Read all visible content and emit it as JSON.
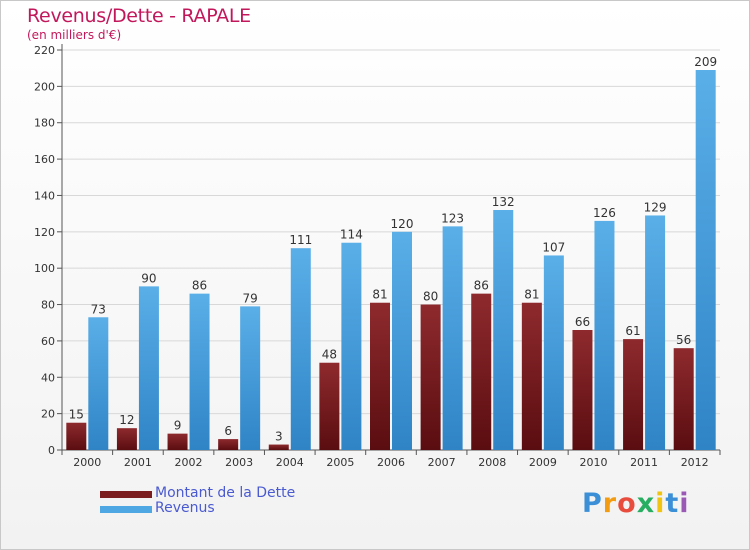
{
  "header": {
    "title": "Revenus/Dette - RAPALE",
    "subtitle": "(en milliers d'€)"
  },
  "logo": {
    "text": "Proxiti",
    "letters": [
      {
        "ch": "P",
        "color": "#3a8fd6"
      },
      {
        "ch": "r",
        "color": "#f39c12"
      },
      {
        "ch": "o",
        "color": "#e74c3c"
      },
      {
        "ch": "x",
        "color": "#27ae60"
      },
      {
        "ch": "i",
        "color": "#f1c40f"
      },
      {
        "ch": "t",
        "color": "#3a8fd6"
      },
      {
        "ch": "i",
        "color": "#9b59b6"
      }
    ]
  },
  "chart_data": {
    "type": "bar",
    "title": "Revenus/Dette - RAPALE",
    "subtitle": "(en milliers d'€)",
    "categories": [
      "2000",
      "2001",
      "2002",
      "2003",
      "2004",
      "2005",
      "2006",
      "2007",
      "2008",
      "2009",
      "2010",
      "2011",
      "2012"
    ],
    "series": [
      {
        "name": "Montant de la Dette",
        "color": "#7b1c1f",
        "values": [
          15,
          12,
          9,
          6,
          3,
          48,
          81,
          80,
          86,
          81,
          66,
          61,
          56
        ]
      },
      {
        "name": "Revenus",
        "color": "#4ea6e3",
        "values": [
          73,
          90,
          86,
          79,
          111,
          114,
          120,
          123,
          132,
          107,
          126,
          129,
          209
        ]
      }
    ],
    "ylim": [
      0,
      220
    ],
    "yticks": [
      0,
      20,
      40,
      60,
      80,
      100,
      120,
      140,
      160,
      180,
      200,
      220
    ],
    "grid": true,
    "legend_position": "bottom-left"
  }
}
